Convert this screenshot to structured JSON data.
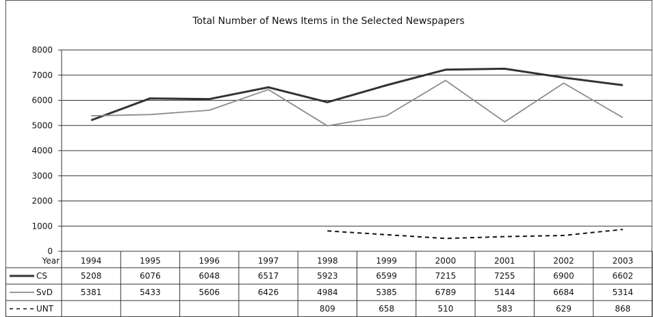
{
  "chart_data": {
    "type": "line",
    "title": "Total Number of News Items in the Selected Newspapers",
    "xlabel": "Year",
    "ylabel": "",
    "ylim": [
      0,
      8000
    ],
    "yticks": [
      0,
      1000,
      2000,
      3000,
      4000,
      5000,
      6000,
      7000,
      8000
    ],
    "grid": true,
    "legend": "data-table-left",
    "categories": [
      "1994",
      "1995",
      "1996",
      "1997",
      "1998",
      "1999",
      "2000",
      "2001",
      "2002",
      "2003"
    ],
    "series": [
      {
        "name": "CS",
        "color": "#333333",
        "dash": "solid-thick",
        "values": [
          5208,
          6076,
          6048,
          6517,
          5923,
          6599,
          7215,
          7255,
          6900,
          6602
        ]
      },
      {
        "name": "SvD",
        "color": "#8c8c8c",
        "dash": "solid",
        "values": [
          5381,
          5433,
          5606,
          6426,
          4984,
          5385,
          6789,
          5144,
          6684,
          5314
        ]
      },
      {
        "name": "UNT",
        "color": "#111111",
        "dash": "dashed",
        "values": [
          null,
          null,
          null,
          null,
          809,
          658,
          510,
          583,
          629,
          868
        ]
      }
    ]
  }
}
